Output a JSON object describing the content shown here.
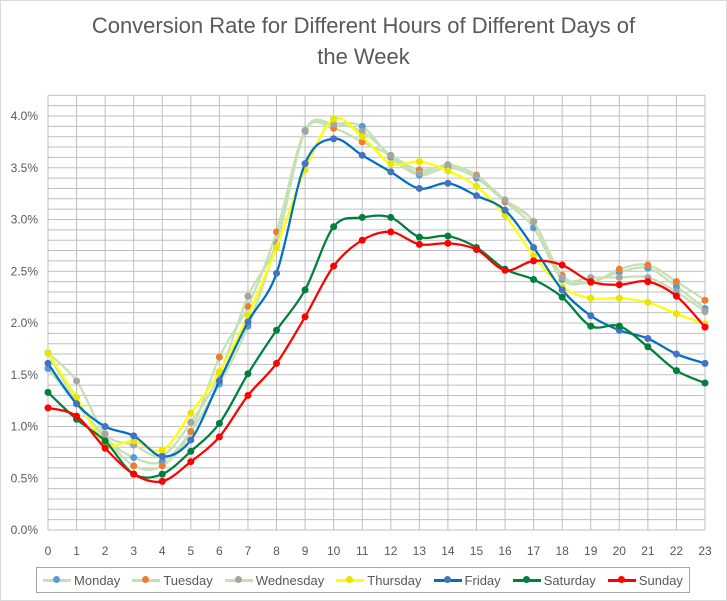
{
  "chart_data": {
    "type": "line",
    "title": "Conversion Rate for Different Hours of Different Days of the Week",
    "title_lines": [
      "Conversion Rate for Different Hours of Different Days of",
      "the Week"
    ],
    "xlabel": "",
    "ylabel": "",
    "x": [
      0,
      1,
      2,
      3,
      4,
      5,
      6,
      7,
      8,
      9,
      10,
      11,
      12,
      13,
      14,
      15,
      16,
      17,
      18,
      19,
      20,
      21,
      22,
      23
    ],
    "x_tick_labels": [
      "0",
      "1",
      "2",
      "3",
      "4",
      "5",
      "6",
      "7",
      "8",
      "9",
      "10",
      "11",
      "12",
      "13",
      "14",
      "15",
      "16",
      "17",
      "18",
      "19",
      "20",
      "21",
      "22",
      "23"
    ],
    "ylim": [
      0,
      4.2
    ],
    "y_ticks": [
      0,
      0.5,
      1,
      1.5,
      2,
      2.5,
      3,
      3.5,
      4
    ],
    "y_tick_labels": [
      "0.0%",
      "0.5%",
      "1.0%",
      "1.5%",
      "2.0%",
      "2.5%",
      "3.0%",
      "3.5%",
      "4.0%"
    ],
    "y_unit": "%",
    "grid": true,
    "smooth": true,
    "legend_position": "bottom",
    "series": [
      {
        "name": "Monday",
        "line_color": "#c5e0b4",
        "marker_color": "#5b9bd5",
        "values": [
          1.56,
          1.22,
          0.89,
          0.7,
          0.66,
          0.95,
          1.41,
          1.97,
          2.78,
          3.85,
          3.92,
          3.9,
          3.6,
          3.43,
          3.5,
          3.4,
          3.17,
          2.92,
          2.42,
          2.4,
          2.49,
          2.53,
          2.35,
          2.14
        ]
      },
      {
        "name": "Tuesday",
        "line_color": "#c5e0b4",
        "marker_color": "#ed7d31",
        "values": [
          1.71,
          1.23,
          0.9,
          0.62,
          0.62,
          0.95,
          1.67,
          2.16,
          2.88,
          3.86,
          3.88,
          3.75,
          3.62,
          3.48,
          3.52,
          3.43,
          3.17,
          2.98,
          2.46,
          2.39,
          2.52,
          2.56,
          2.4,
          2.22
        ]
      },
      {
        "name": "Wednesday",
        "line_color": "#c5e0b4",
        "marker_color": "#a5a5a5",
        "values": [
          1.71,
          1.44,
          0.93,
          0.82,
          0.72,
          1.04,
          1.5,
          2.26,
          2.77,
          3.86,
          3.92,
          3.85,
          3.62,
          3.45,
          3.53,
          3.42,
          3.19,
          2.98,
          2.44,
          2.44,
          2.44,
          2.44,
          2.3,
          2.11
        ]
      },
      {
        "name": "Thursday",
        "line_color": "#ffff00",
        "marker_color": "#e6e600",
        "values": [
          1.71,
          1.28,
          0.84,
          0.86,
          0.77,
          1.13,
          1.53,
          2.07,
          2.73,
          3.48,
          3.97,
          3.8,
          3.54,
          3.56,
          3.47,
          3.32,
          3.04,
          2.65,
          2.35,
          2.24,
          2.24,
          2.2,
          2.09,
          1.99
        ]
      },
      {
        "name": "Friday",
        "line_color": "#0070c0",
        "marker_color": "#4472c4",
        "values": [
          1.61,
          1.22,
          1.0,
          0.91,
          0.71,
          0.87,
          1.44,
          2.01,
          2.48,
          3.54,
          3.78,
          3.62,
          3.46,
          3.3,
          3.35,
          3.23,
          3.09,
          2.73,
          2.32,
          2.07,
          1.93,
          1.85,
          1.7,
          1.61
        ]
      },
      {
        "name": "Saturday",
        "line_color": "#00803c",
        "marker_color": "#00803c",
        "values": [
          1.33,
          1.07,
          0.86,
          0.54,
          0.54,
          0.76,
          1.03,
          1.51,
          1.93,
          2.32,
          2.93,
          3.02,
          3.02,
          2.83,
          2.84,
          2.73,
          2.52,
          2.42,
          2.25,
          1.97,
          1.97,
          1.77,
          1.54,
          1.42
        ]
      },
      {
        "name": "Sunday",
        "line_color": "#ff0000",
        "marker_color": "#ff0000",
        "values": [
          1.18,
          1.1,
          0.79,
          0.54,
          0.47,
          0.66,
          0.9,
          1.3,
          1.61,
          2.06,
          2.55,
          2.8,
          2.88,
          2.76,
          2.77,
          2.71,
          2.51,
          2.6,
          2.56,
          2.4,
          2.37,
          2.4,
          2.26,
          1.96
        ]
      }
    ]
  }
}
